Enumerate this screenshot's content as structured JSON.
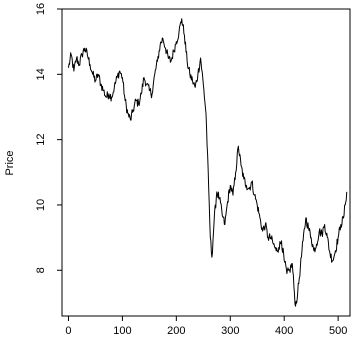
{
  "chart_data": {
    "type": "line",
    "title": "",
    "xlabel": "",
    "ylabel": "Price",
    "xlim": [
      -12,
      522
    ],
    "ylim": [
      6.6,
      16.0
    ],
    "grid": false,
    "legend": "none",
    "x_ticks": [
      {
        "value": 0,
        "label": "0"
      },
      {
        "value": 100,
        "label": "100"
      },
      {
        "value": 200,
        "label": "200"
      },
      {
        "value": 300,
        "label": "300"
      },
      {
        "value": 400,
        "label": "400"
      },
      {
        "value": 500,
        "label": "500"
      }
    ],
    "y_ticks": [
      {
        "value": 8,
        "label": "8"
      },
      {
        "value": 10,
        "label": "10"
      },
      {
        "value": 12,
        "label": "12"
      },
      {
        "value": 14,
        "label": "14"
      },
      {
        "value": 16,
        "label": "16"
      }
    ],
    "series": [
      {
        "color": "#000000",
        "points": [
          [
            0,
            14.2
          ],
          [
            5,
            14.6
          ],
          [
            10,
            14.1
          ],
          [
            15,
            14.5
          ],
          [
            20,
            14.3
          ],
          [
            25,
            14.6
          ],
          [
            30,
            14.8
          ],
          [
            35,
            14.6
          ],
          [
            40,
            14.3
          ],
          [
            45,
            14.0
          ],
          [
            50,
            13.8
          ],
          [
            55,
            14.0
          ],
          [
            60,
            13.7
          ],
          [
            65,
            13.5
          ],
          [
            70,
            13.3
          ],
          [
            75,
            13.4
          ],
          [
            80,
            13.3
          ],
          [
            85,
            13.6
          ],
          [
            90,
            13.9
          ],
          [
            95,
            14.1
          ],
          [
            100,
            13.9
          ],
          [
            105,
            13.2
          ],
          [
            110,
            12.8
          ],
          [
            115,
            12.6
          ],
          [
            120,
            12.9
          ],
          [
            125,
            13.2
          ],
          [
            130,
            13.1
          ],
          [
            135,
            13.4
          ],
          [
            140,
            13.9
          ],
          [
            145,
            13.7
          ],
          [
            150,
            13.5
          ],
          [
            155,
            13.4
          ],
          [
            160,
            14.0
          ],
          [
            165,
            14.4
          ],
          [
            170,
            14.9
          ],
          [
            175,
            15.1
          ],
          [
            180,
            14.8
          ],
          [
            185,
            14.5
          ],
          [
            190,
            14.4
          ],
          [
            195,
            14.7
          ],
          [
            200,
            15.0
          ],
          [
            205,
            15.3
          ],
          [
            210,
            15.7
          ],
          [
            215,
            15.2
          ],
          [
            220,
            14.4
          ],
          [
            225,
            14.0
          ],
          [
            230,
            13.8
          ],
          [
            235,
            13.6
          ],
          [
            240,
            14.0
          ],
          [
            245,
            14.5
          ],
          [
            250,
            13.7
          ],
          [
            255,
            12.8
          ],
          [
            260,
            10.5
          ],
          [
            263,
            9.0
          ],
          [
            266,
            8.4
          ],
          [
            270,
            9.5
          ],
          [
            275,
            10.4
          ],
          [
            280,
            10.2
          ],
          [
            285,
            9.7
          ],
          [
            290,
            9.4
          ],
          [
            295,
            10.1
          ],
          [
            300,
            10.6
          ],
          [
            305,
            10.3
          ],
          [
            310,
            11.0
          ],
          [
            315,
            11.8
          ],
          [
            320,
            11.2
          ],
          [
            325,
            10.8
          ],
          [
            330,
            10.6
          ],
          [
            335,
            10.5
          ],
          [
            340,
            10.7
          ],
          [
            345,
            10.3
          ],
          [
            350,
            10.0
          ],
          [
            355,
            9.6
          ],
          [
            360,
            9.2
          ],
          [
            365,
            9.4
          ],
          [
            370,
            9.0
          ],
          [
            375,
            9.0
          ],
          [
            380,
            8.8
          ],
          [
            385,
            8.6
          ],
          [
            390,
            8.7
          ],
          [
            395,
            8.9
          ],
          [
            400,
            8.3
          ],
          [
            405,
            7.9
          ],
          [
            410,
            8.0
          ],
          [
            415,
            8.2
          ],
          [
            418,
            7.5
          ],
          [
            421,
            6.9
          ],
          [
            425,
            7.3
          ],
          [
            430,
            8.1
          ],
          [
            435,
            8.9
          ],
          [
            440,
            9.6
          ],
          [
            445,
            9.3
          ],
          [
            450,
            9.0
          ],
          [
            455,
            8.6
          ],
          [
            460,
            8.8
          ],
          [
            465,
            9.2
          ],
          [
            470,
            9.1
          ],
          [
            475,
            9.4
          ],
          [
            480,
            9.0
          ],
          [
            485,
            8.5
          ],
          [
            490,
            8.3
          ],
          [
            495,
            8.6
          ],
          [
            500,
            9.0
          ],
          [
            505,
            9.4
          ],
          [
            510,
            9.6
          ],
          [
            513,
            10.0
          ],
          [
            516,
            10.4
          ]
        ]
      }
    ]
  }
}
